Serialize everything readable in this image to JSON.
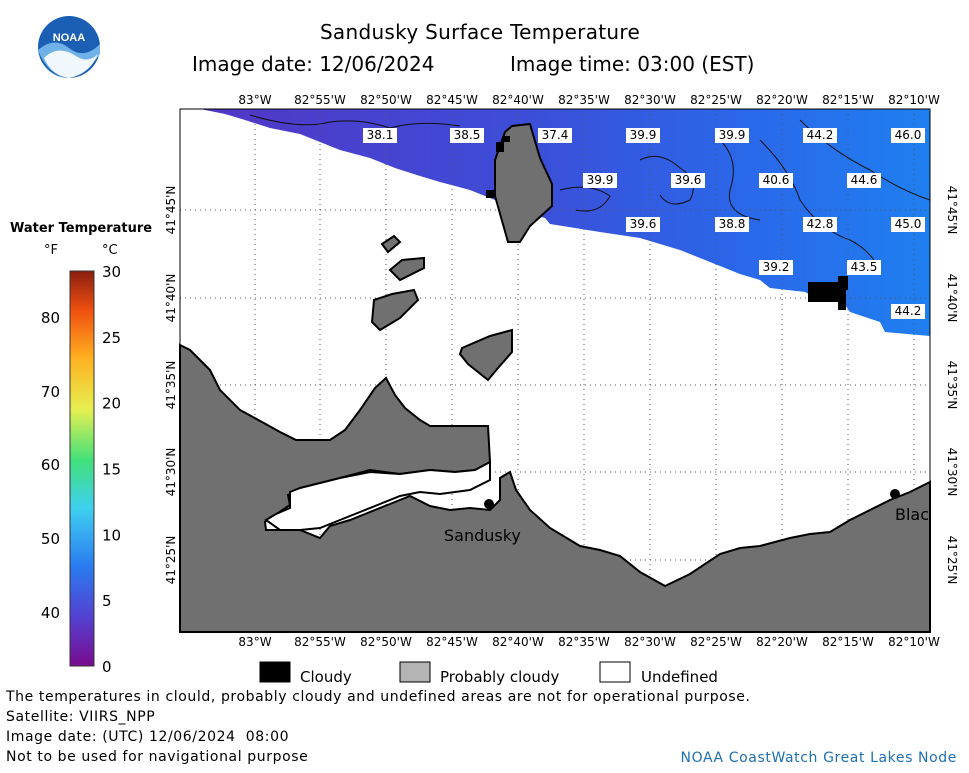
{
  "header": {
    "title": "Sandusky Surface Temperature",
    "image_date": "Image date: 12/06/2024",
    "image_time": "Image time: 03:00 (EST)"
  },
  "logo": {
    "text": "NOAA",
    "icon": "noaa-logo-icon"
  },
  "colorbar": {
    "title": "Water Temperature",
    "unit_f": "°F",
    "unit_c": "°C",
    "f_ticks": [
      "80",
      "70",
      "60",
      "50",
      "40"
    ],
    "c_ticks": [
      "30",
      "25",
      "20",
      "15",
      "10",
      "5",
      "0"
    ],
    "range_c": [
      0,
      30
    ]
  },
  "map": {
    "lon_labels": [
      "83°W",
      "82°55'W",
      "82°50'W",
      "82°45'W",
      "82°40'W",
      "82°35'W",
      "82°30'W",
      "82°25'W",
      "82°20'W",
      "82°15'W",
      "82°10'W"
    ],
    "lat_labels": [
      "41°45'N",
      "41°40'N",
      "41°35'N",
      "41°30'N",
      "41°25'N"
    ],
    "temperature_labels": [
      "38.1",
      "38.5",
      "37.4",
      "39.9",
      "39.9",
      "44.2",
      "46.0",
      "39.9",
      "39.6",
      "40.6",
      "44.6",
      "39.6",
      "38.8",
      "42.8",
      "45.0",
      "39.2",
      "43.5",
      "44.2"
    ],
    "city_labels": [
      "Sandusky",
      "Blac"
    ],
    "colors": {
      "land": "#707070",
      "water_cold": "#4a30c8",
      "water_warm": "#1e78f0",
      "cloud": "#000000",
      "undefined": "#ffffff"
    }
  },
  "legend": {
    "items": [
      {
        "label": "Cloudy",
        "color": "#000000"
      },
      {
        "label": "Probably cloudy",
        "color": "#b4b4b4"
      },
      {
        "label": "Undefined",
        "color": "#ffffff"
      }
    ]
  },
  "footer": {
    "line1": "The temperatures in clould, probably cloudy and undefined areas are not for operational purpose.",
    "line2": "Satellite: VIIRS_NPP",
    "line3": "Image date: (UTC) 12/06/2024  08:00",
    "line4": "Not to be used for navigational purpose",
    "credit": "NOAA CoastWatch Great Lakes Node"
  }
}
